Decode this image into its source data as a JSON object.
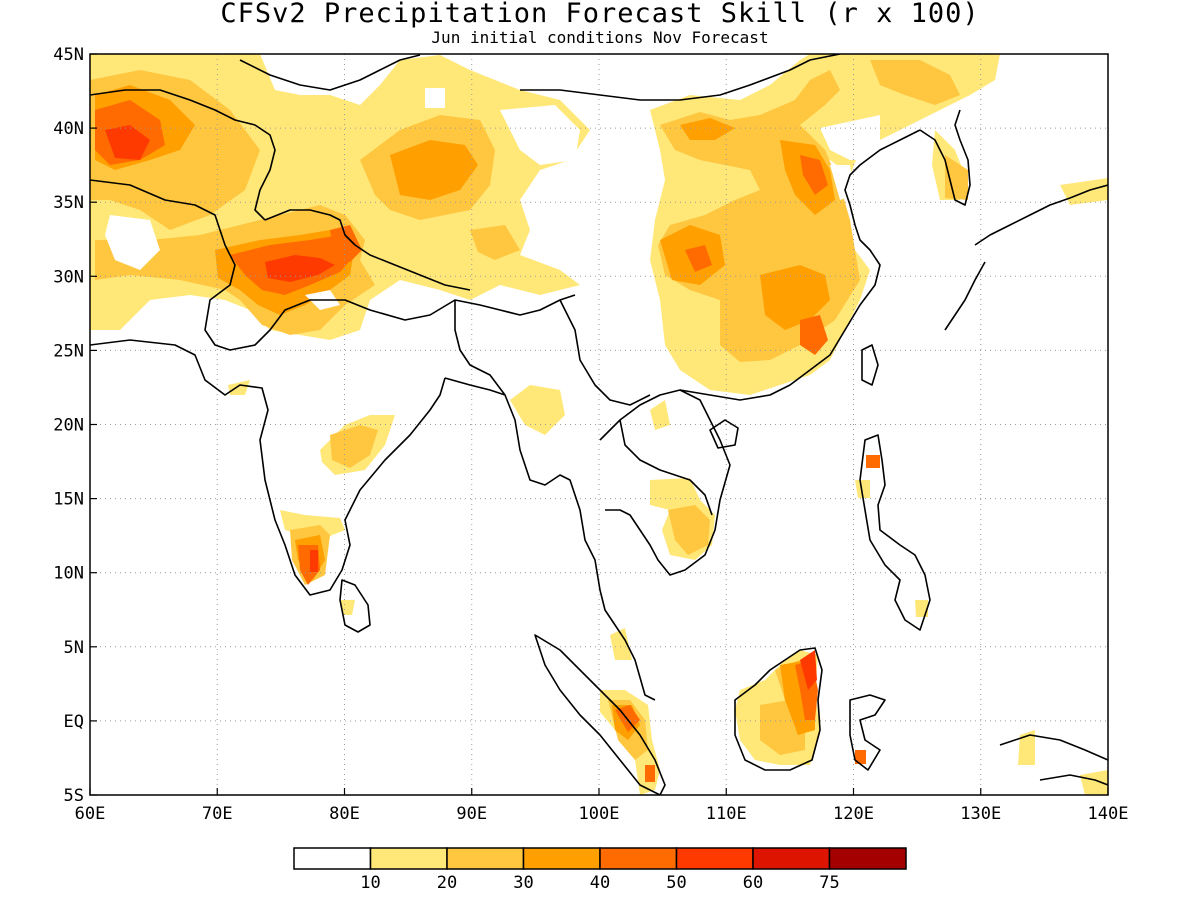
{
  "title": "CFSv2 Precipitation Forecast Skill (r x 100)",
  "subtitle": "Jun initial conditions  Nov Forecast",
  "map": {
    "lon_range": [
      60,
      140
    ],
    "lat_range": [
      -5,
      45
    ],
    "lon_ticks": [
      "60E",
      "70E",
      "80E",
      "90E",
      "100E",
      "110E",
      "120E",
      "130E",
      "140E"
    ],
    "lat_ticks": [
      "5S",
      "EQ",
      "5N",
      "10N",
      "15N",
      "20N",
      "25N",
      "30N",
      "35N",
      "40N",
      "45N"
    ],
    "gridlines": "dotted"
  },
  "legend": {
    "levels": [
      "10",
      "20",
      "30",
      "40",
      "50",
      "60",
      "75"
    ],
    "colors": [
      "#ffffff",
      "#ffe778",
      "#ffc640",
      "#ff9f00",
      "#ff6b00",
      "#ff3a00",
      "#dd1500",
      "#a50000"
    ]
  }
}
